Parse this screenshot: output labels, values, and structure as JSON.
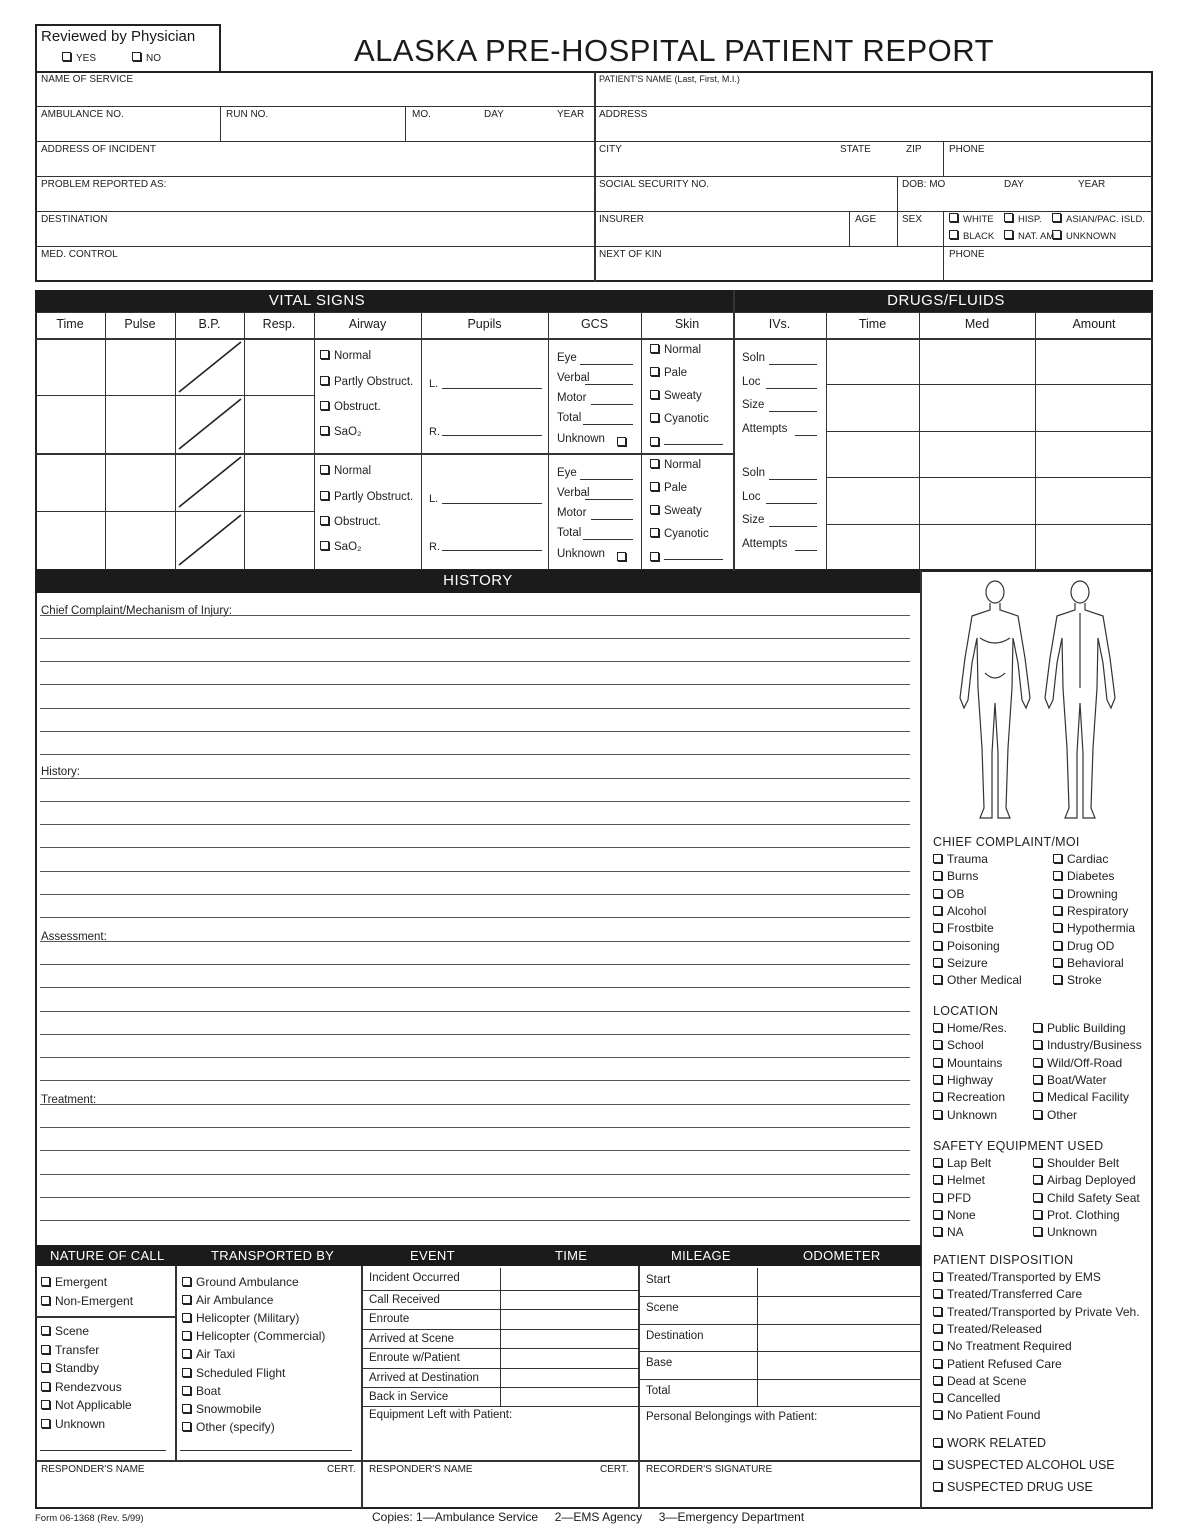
{
  "reviewed": {
    "label": "Reviewed by Physician",
    "yes": "YES",
    "no": "NO"
  },
  "title": "ALASKA PRE-HOSPITAL PATIENT REPORT",
  "header": {
    "name_of_service": "NAME OF SERVICE",
    "patient_name": "PATIENT'S NAME (Last, First, M.I.)",
    "ambulance_no": "AMBULANCE NO.",
    "run_no": "RUN NO.",
    "mo": "MO.",
    "day": "DAY",
    "year": "YEAR",
    "address": "ADDRESS",
    "address_of_incident": "ADDRESS OF INCIDENT",
    "city": "CITY",
    "state": "STATE",
    "zip": "ZIP",
    "phone": "PHONE",
    "problem_reported": "PROBLEM REPORTED AS:",
    "ssn": "SOCIAL SECURITY NO.",
    "dob_mo": "DOB:  MO",
    "dob_day": "DAY",
    "dob_year": "YEAR",
    "destination": "DESTINATION",
    "insurer": "INSURER",
    "age": "AGE",
    "sex": "SEX",
    "race": [
      "WHITE",
      "HISP.",
      "ASIAN/PAC. ISLD.",
      "BLACK",
      "NAT. AM.",
      "UNKNOWN"
    ],
    "med_control": "MED. CONTROL",
    "next_of_kin": "NEXT OF KIN",
    "phone2": "PHONE"
  },
  "vitals": {
    "title": "VITAL SIGNS",
    "columns": [
      "Time",
      "Pulse",
      "B.P.",
      "Resp.",
      "Airway",
      "Pupils",
      "GCS",
      "Skin",
      "IVs."
    ],
    "airway": [
      "Normal",
      "Partly Obstruct.",
      "Obstruct.",
      "SaO₂"
    ],
    "pupils": [
      "L.",
      "R."
    ],
    "gcs": [
      "Eye",
      "Verbal",
      "Motor",
      "Total",
      "Unknown"
    ],
    "skin": [
      "Normal",
      "Pale",
      "Sweaty",
      "Cyanotic"
    ],
    "ivs": [
      "Soln",
      "Loc",
      "Size",
      "Attempts"
    ]
  },
  "drugs": {
    "title": "DRUGS/FLUIDS",
    "columns": [
      "Time",
      "Med",
      "Amount"
    ]
  },
  "history": {
    "title": "HISTORY",
    "chief": "Chief Complaint/Mechanism of Injury:",
    "history": "History:",
    "assessment": "Assessment:",
    "treatment": "Treatment:"
  },
  "chief_complaint": {
    "title": "CHIEF COMPLAINT/MOI",
    "left": [
      "Trauma",
      "Burns",
      "OB",
      "Alcohol",
      "Frostbite",
      "Poisoning",
      "Seizure",
      "Other Medical"
    ],
    "right": [
      "Cardiac",
      "Diabetes",
      "Drowning",
      "Respiratory",
      "Hypothermia",
      "Drug OD",
      "Behavioral",
      "Stroke"
    ]
  },
  "location": {
    "title": "LOCATION",
    "left": [
      "Home/Res.",
      "School",
      "Mountains",
      "Highway",
      "Recreation",
      "Unknown"
    ],
    "right": [
      "Public Building",
      "Industry/Business",
      "Wild/Off-Road",
      "Boat/Water",
      "Medical Facility",
      "Other"
    ]
  },
  "safety": {
    "title": "SAFETY EQUIPMENT USED",
    "left": [
      "Lap Belt",
      "Helmet",
      "PFD",
      "None",
      "NA"
    ],
    "right": [
      "Shoulder Belt",
      "Airbag Deployed",
      "Child Safety Seat",
      "Prot. Clothing",
      "Unknown"
    ]
  },
  "disposition": {
    "title": "PATIENT DISPOSITION",
    "items": [
      "Treated/Transported by EMS",
      "Treated/Transferred Care",
      "Treated/Transported by Private Veh.",
      "Treated/Released",
      "No Treatment Required",
      "Patient Refused Care",
      "Dead at Scene",
      "Cancelled",
      "No Patient Found"
    ]
  },
  "flags": [
    "WORK RELATED",
    "SUSPECTED ALCOHOL USE",
    "SUSPECTED DRUG USE"
  ],
  "bottom": {
    "headers": [
      "NATURE OF CALL",
      "TRANSPORTED BY",
      "EVENT",
      "TIME",
      "MILEAGE",
      "ODOMETER"
    ],
    "nature_a": [
      "Emergent",
      "Non-Emergent"
    ],
    "nature_b": [
      "Scene",
      "Transfer",
      "Standby",
      "Rendezvous",
      "Not Applicable",
      "Unknown"
    ],
    "transported": [
      "Ground Ambulance",
      "Air Ambulance",
      "Helicopter (Military)",
      "Helicopter (Commercial)",
      "Air Taxi",
      "Scheduled Flight",
      "Boat",
      "Snowmobile",
      "Other (specify)"
    ],
    "events": [
      "Incident Occurred",
      "Call Received",
      "Enroute",
      "Arrived at Scene",
      "Enroute w/Patient",
      "Arrived at Destination",
      "Back in Service"
    ],
    "equipment_left": "Equipment Left with Patient:",
    "mileage": [
      "Start",
      "Scene",
      "Destination",
      "Base",
      "Total"
    ],
    "belongings": "Personal Belongings with Patient:",
    "responder_name": "RESPONDER'S NAME",
    "cert": "CERT.",
    "recorder_signature": "RECORDER'S SIGNATURE"
  },
  "footer": {
    "form_no": "Form 06-1368 (Rev. 5/99)",
    "copies": "Copies: 1—Ambulance Service     2—EMS Agency     3—Emergency Department"
  }
}
